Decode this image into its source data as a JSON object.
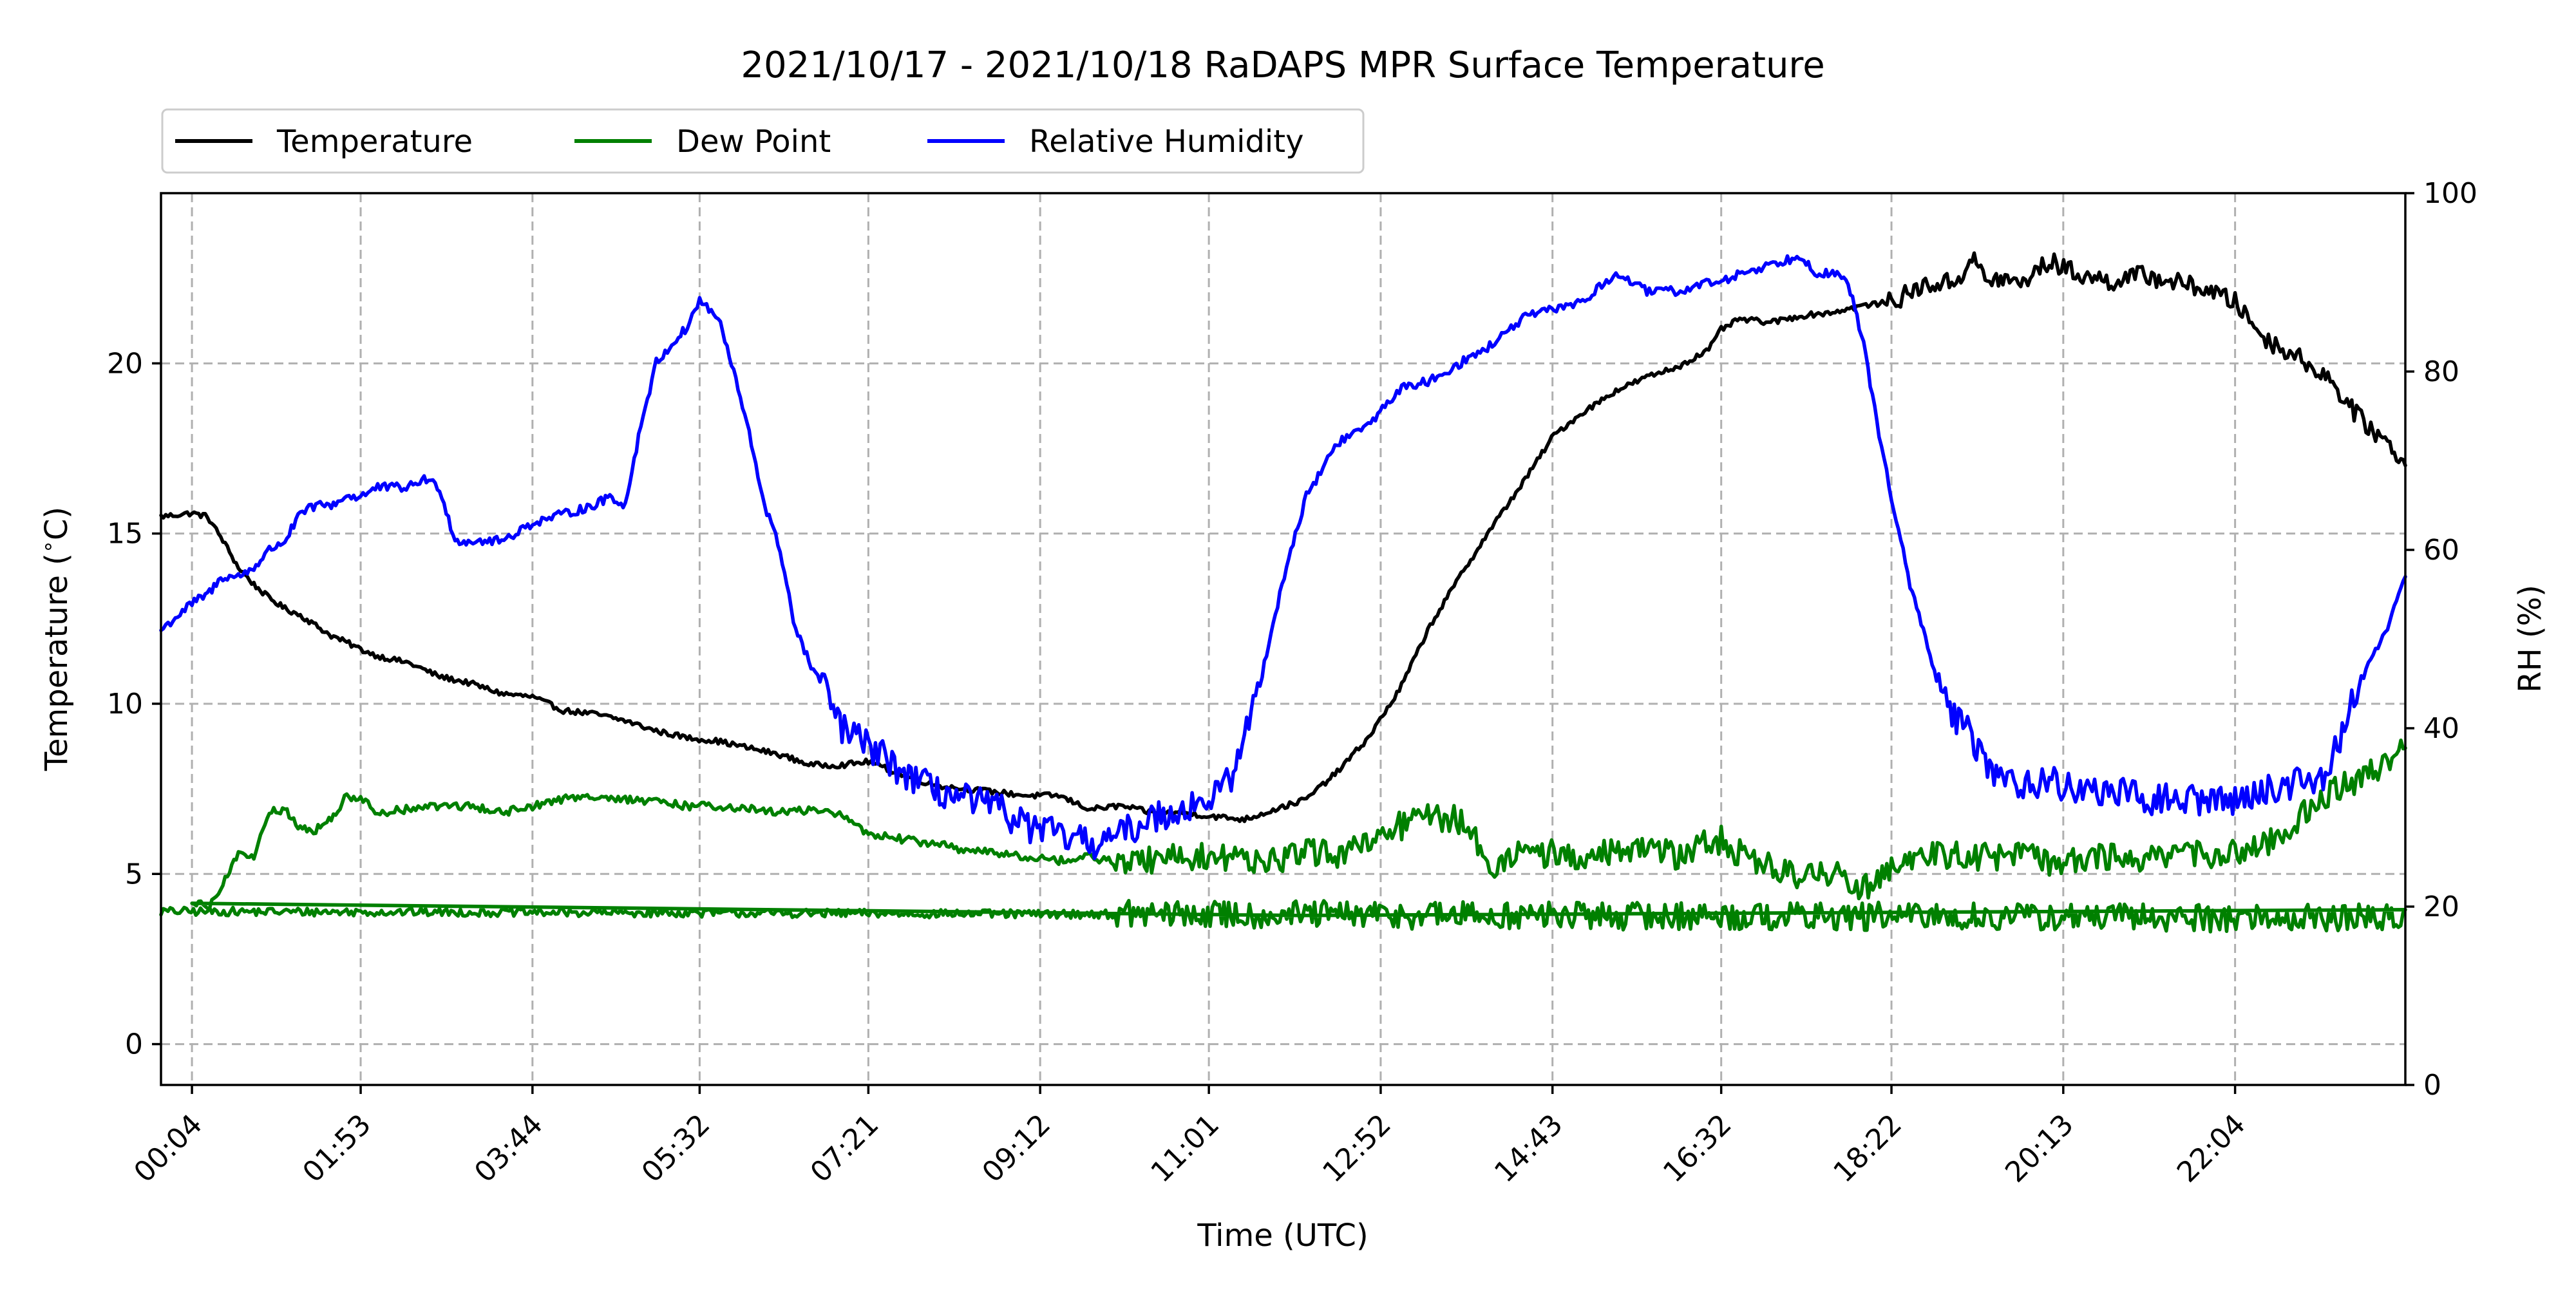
{
  "chart_data": {
    "type": "line",
    "title": "2021/10/17 - 2021/10/18 RaDAPS MPR Surface Temperature",
    "xlabel": "Time (UTC)",
    "ylabel_left": "Temperature ($^\\circ$C)",
    "ylabel_right": "RH (%)",
    "x_ticks": [
      "00:04",
      "01:53",
      "03:44",
      "05:32",
      "07:21",
      "09:12",
      "11:01",
      "12:52",
      "14:43",
      "16:32",
      "18:22",
      "20:13",
      "22:04"
    ],
    "xlim": [
      "23:44",
      "23:54"
    ],
    "ylim_left": [
      -1.2,
      25
    ],
    "ylim_right": [
      0,
      100
    ],
    "yticks_left": [
      0,
      5,
      10,
      15,
      20
    ],
    "yticks_right": [
      0,
      20,
      40,
      60,
      80,
      100
    ],
    "grid": true,
    "legend_position": "top-left, above plot",
    "series": [
      {
        "name": "Temperature",
        "axis": "left",
        "color": "#000000",
        "x": [
          "23:44",
          "00:04",
          "00:14",
          "00:24",
          "00:34",
          "00:44",
          "00:54",
          "01:04",
          "01:14",
          "01:24",
          "01:34",
          "01:44",
          "01:53",
          "02:04",
          "02:24",
          "02:44",
          "03:04",
          "03:24",
          "03:44",
          "04:04",
          "04:24",
          "04:44",
          "05:04",
          "05:24",
          "05:44",
          "06:04",
          "06:24",
          "06:44",
          "07:04",
          "07:21",
          "07:44",
          "08:04",
          "08:24",
          "08:44",
          "09:04",
          "09:24",
          "09:44",
          "10:04",
          "10:24",
          "10:44",
          "11:01",
          "11:24",
          "11:44",
          "12:04",
          "12:24",
          "12:44",
          "13:04",
          "13:24",
          "13:44",
          "14:04",
          "14:24",
          "14:44",
          "15:04",
          "15:24",
          "15:44",
          "16:04",
          "16:24",
          "16:32",
          "16:44",
          "17:04",
          "17:24",
          "17:44",
          "18:04",
          "18:22",
          "18:44",
          "19:04",
          "19:14",
          "19:24",
          "19:34",
          "19:44",
          "20:04",
          "20:24",
          "20:44",
          "21:04",
          "21:24",
          "21:44",
          "22:04",
          "22:24",
          "22:44",
          "23:04",
          "23:24",
          "23:44",
          "23:54"
        ],
        "y": [
          15.5,
          15.6,
          15.5,
          14.8,
          14.0,
          13.5,
          13.1,
          12.8,
          12.6,
          12.3,
          12.0,
          11.8,
          11.6,
          11.4,
          11.2,
          10.8,
          10.6,
          10.3,
          10.2,
          9.8,
          9.7,
          9.5,
          9.2,
          9.0,
          8.9,
          8.7,
          8.5,
          8.2,
          8.2,
          8.3,
          7.9,
          7.6,
          7.5,
          7.4,
          7.3,
          7.3,
          6.9,
          7.0,
          6.8,
          6.8,
          6.7,
          6.6,
          6.9,
          7.2,
          8.0,
          9.0,
          10.4,
          12.3,
          13.8,
          15.2,
          16.5,
          17.9,
          18.6,
          19.2,
          19.6,
          19.9,
          20.4,
          21.0,
          21.3,
          21.2,
          21.4,
          21.5,
          21.7,
          21.8,
          22.3,
          22.4,
          23.1,
          22.4,
          22.5,
          22.3,
          23.0,
          22.6,
          22.4,
          22.6,
          22.4,
          22.2,
          21.8,
          20.7,
          20.2,
          19.6,
          18.4,
          17.6,
          17.0
        ]
      },
      {
        "name": "Dew Point",
        "axis": "left",
        "color": "#008000",
        "x": [
          "23:44",
          "23:54",
          "00:04",
          "00:14",
          "00:24",
          "00:34",
          "00:44",
          "00:54",
          "01:04",
          "01:14",
          "01:24",
          "01:34",
          "01:44",
          "01:53",
          "02:04",
          "02:24",
          "02:44",
          "03:04",
          "03:24",
          "03:44",
          "04:04",
          "04:24",
          "04:44",
          "05:04",
          "05:24",
          "05:44",
          "06:04",
          "06:24",
          "06:44",
          "07:04",
          "07:21",
          "07:44",
          "08:04",
          "08:24",
          "08:44",
          "09:04",
          "09:24",
          "09:44",
          "10:04",
          "10:24",
          "10:44",
          "11:01",
          "11:24",
          "11:44",
          "12:04",
          "12:24",
          "12:44",
          "13:04",
          "13:24",
          "13:44",
          "14:04",
          "14:24",
          "14:44",
          "15:04",
          "15:24",
          "15:44",
          "16:04",
          "16:24",
          "16:32",
          "16:44",
          "17:04",
          "17:24",
          "17:44",
          "18:04",
          "18:22",
          "18:44",
          "19:04",
          "19:24",
          "19:44",
          "20:04",
          "20:24",
          "20:44",
          "21:04",
          "21:24",
          "21:44",
          "22:04",
          "22:24",
          "22:44",
          "23:04",
          "23:24",
          "23:44",
          "23:54"
        ],
        "y": [
          3.9,
          3.7,
          4.2,
          4.0,
          4.7,
          5.6,
          5.5,
          6.8,
          6.9,
          6.3,
          6.3,
          6.6,
          7.3,
          7.2,
          6.8,
          6.9,
          7.0,
          7.0,
          6.8,
          7.0,
          7.2,
          7.3,
          7.2,
          7.1,
          7.0,
          7.0,
          6.9,
          6.8,
          6.9,
          6.7,
          6.2,
          6.0,
          5.9,
          5.7,
          5.6,
          5.5,
          5.4,
          5.5,
          5.3,
          5.4,
          5.5,
          5.5,
          5.4,
          5.4,
          5.6,
          5.6,
          5.8,
          6.4,
          6.7,
          6.6,
          5.3,
          5.6,
          5.6,
          5.4,
          5.7,
          5.9,
          5.5,
          5.9,
          6.0,
          5.6,
          5.2,
          4.9,
          5.1,
          4.6,
          5.3,
          5.5,
          5.6,
          5.5,
          5.6,
          5.3,
          5.4,
          5.5,
          5.5,
          5.5,
          5.6,
          5.6,
          5.9,
          6.6,
          7.3,
          7.8,
          8.4,
          8.7
        ]
      },
      {
        "name": "Relative Humidity",
        "axis": "right",
        "color": "#0000ff",
        "x": [
          "23:44",
          "00:04",
          "00:14",
          "00:24",
          "00:34",
          "00:44",
          "00:54",
          "01:04",
          "01:14",
          "01:24",
          "01:34",
          "01:44",
          "01:53",
          "02:04",
          "02:24",
          "02:34",
          "02:44",
          "02:54",
          "03:04",
          "03:24",
          "03:44",
          "04:04",
          "04:24",
          "04:34",
          "04:44",
          "04:54",
          "05:04",
          "05:14",
          "05:24",
          "05:32",
          "05:44",
          "05:54",
          "06:04",
          "06:14",
          "06:24",
          "06:34",
          "06:44",
          "06:54",
          "07:04",
          "07:21",
          "07:44",
          "08:04",
          "08:24",
          "08:44",
          "09:04",
          "09:24",
          "09:44",
          "10:04",
          "10:24",
          "10:44",
          "11:01",
          "11:14",
          "11:24",
          "11:34",
          "11:44",
          "11:54",
          "12:04",
          "12:24",
          "12:44",
          "13:04",
          "13:24",
          "13:44",
          "14:04",
          "14:24",
          "14:44",
          "15:04",
          "15:24",
          "15:44",
          "16:04",
          "16:24",
          "16:32",
          "16:44",
          "17:04",
          "17:24",
          "17:34",
          "17:44",
          "17:54",
          "18:04",
          "18:14",
          "18:22",
          "18:34",
          "18:44",
          "18:54",
          "19:04",
          "19:14",
          "19:24",
          "19:34",
          "19:44",
          "20:04",
          "20:24",
          "20:44",
          "21:04",
          "21:24",
          "21:44",
          "22:04",
          "22:24",
          "22:44",
          "23:04",
          "23:24",
          "23:44",
          "23:54"
        ],
        "y": [
          51,
          54,
          55,
          57,
          57,
          58,
          60,
          61,
          64,
          65,
          65,
          66,
          66,
          67,
          67,
          68,
          67,
          61,
          61,
          61,
          63,
          64,
          65,
          66,
          65,
          74,
          81,
          83,
          85,
          88,
          86,
          80,
          73,
          65,
          60,
          51,
          47,
          44,
          40,
          38,
          35,
          33,
          32,
          31,
          29,
          28,
          27,
          28,
          30,
          31,
          32,
          34,
          39,
          45,
          53,
          60,
          66,
          72,
          74,
          78,
          79,
          81,
          83,
          86,
          87,
          88,
          91,
          89,
          89,
          90,
          90,
          91,
          92,
          93,
          91,
          91,
          90,
          83,
          73,
          66,
          56,
          50,
          44,
          41,
          39,
          36,
          34,
          34,
          34,
          33,
          33,
          32,
          32,
          32,
          32,
          33,
          34,
          35,
          45,
          52,
          57
        ]
      }
    ]
  }
}
